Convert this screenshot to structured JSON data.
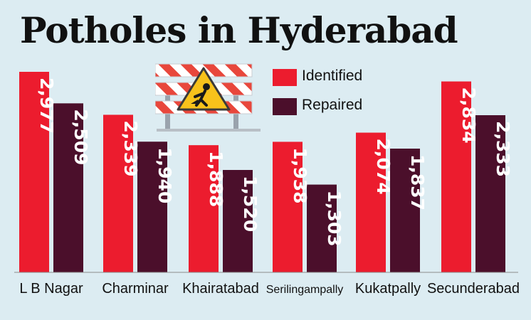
{
  "title": "Potholes in Hyderabad",
  "legend": {
    "identified": "Identified",
    "repaired": "Repaired"
  },
  "colors": {
    "identified": "#ec1c2e",
    "repaired": "#4b0f2b",
    "background": "#dcecf2",
    "baseline": "#8c8c8c"
  },
  "icon": "road-work-barrier-icon",
  "chart_data": {
    "type": "bar",
    "title": "Potholes in Hyderabad",
    "categories": [
      "L B Nagar",
      "Charminar",
      "Khairatabad",
      "Serilingampally",
      "Kukatpally",
      "Secunderabad"
    ],
    "series": [
      {
        "name": "Identified",
        "values": [
          2977,
          2339,
          1888,
          1938,
          2074,
          2834
        ],
        "labels": [
          "2,977",
          "2,339",
          "1,888",
          "1,938",
          "2,074",
          "2,834"
        ]
      },
      {
        "name": "Repaired",
        "values": [
          2509,
          1940,
          1520,
          1303,
          1837,
          2333
        ],
        "labels": [
          "2,509",
          "1,940",
          "1,520",
          "1,303",
          "1,837",
          "2,333"
        ]
      }
    ],
    "ylim": [
      0,
      3000
    ],
    "legend_position": "top-center",
    "grid": false
  }
}
